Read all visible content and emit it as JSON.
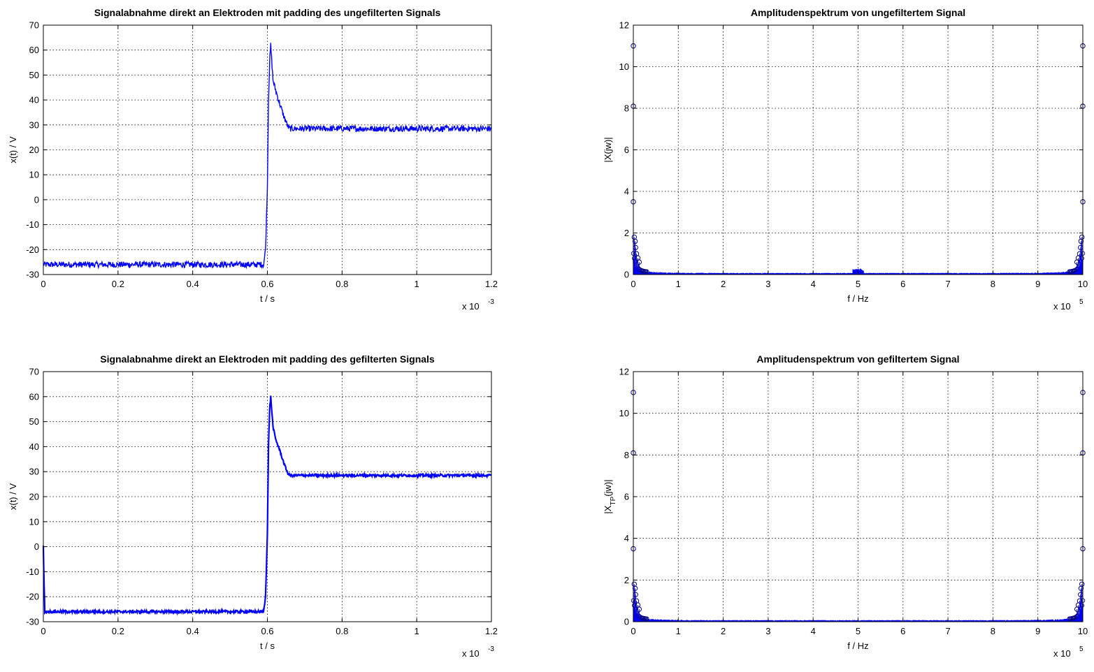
{
  "chart_data": [
    {
      "type": "line",
      "title": "Signalabnahme direkt an Elektroden mit padding des ungefilterten Signals",
      "xlabel": "t / s",
      "ylabel": "x(t) / V",
      "x_exponent": "x 10",
      "x_exponent_power": "-3",
      "xlim": [
        0,
        1.2
      ],
      "ylim": [
        -30,
        70
      ],
      "x_ticks": [
        0,
        0.2,
        0.4,
        0.6,
        0.8,
        1,
        1.2
      ],
      "x_tick_labels": [
        "0",
        "0.2",
        "0.4",
        "0.6",
        "0.8",
        "1",
        "1.2"
      ],
      "y_ticks": [
        -30,
        -20,
        -10,
        0,
        10,
        20,
        30,
        40,
        50,
        60,
        70
      ],
      "y_tick_labels": [
        "-30",
        "-20",
        "-10",
        "0",
        "10",
        "20",
        "30",
        "40",
        "50",
        "60",
        "70"
      ],
      "grid": true,
      "line_color": "#0000ff",
      "noise_amplitude": 1.2,
      "series": [
        {
          "x": [
            0,
            0.59,
            0.595,
            0.6,
            0.603,
            0.606,
            0.609,
            0.615,
            0.622,
            0.632,
            0.645,
            0.656,
            0.66,
            0.8,
            1.0,
            1.2
          ],
          "y": [
            -26,
            -26,
            -20,
            5,
            40,
            55,
            62,
            48,
            44,
            39,
            33,
            29,
            28.5,
            28.5,
            28.5,
            28.5
          ]
        }
      ]
    },
    {
      "type": "scatter",
      "title": "Amplitudenspektrum von ungefiltertem Signal",
      "xlabel": "f / Hz",
      "ylabel": "|X(jw)|",
      "x_exponent": "x 10",
      "x_exponent_power": "5",
      "xlim": [
        0,
        10
      ],
      "ylim": [
        0,
        12
      ],
      "x_ticks": [
        0,
        1,
        2,
        3,
        4,
        5,
        6,
        7,
        8,
        9,
        10
      ],
      "x_tick_labels": [
        "0",
        "1",
        "2",
        "3",
        "4",
        "5",
        "6",
        "7",
        "8",
        "9",
        "10"
      ],
      "y_ticks": [
        0,
        2,
        4,
        6,
        8,
        10,
        12
      ],
      "y_tick_labels": [
        "0",
        "2",
        "4",
        "6",
        "8",
        "10",
        "12"
      ],
      "grid": true,
      "line_color": "#0000ff",
      "marker": "o",
      "peak_points": [
        {
          "x": 0,
          "y": 11
        },
        {
          "x": 0,
          "y": 8.1
        },
        {
          "x": 0,
          "y": 3.5
        },
        {
          "x": 0.02,
          "y": 1.8
        },
        {
          "x": 0.04,
          "y": 1.6
        },
        {
          "x": 0.05,
          "y": 1.3
        },
        {
          "x": 0.07,
          "y": 1.0
        },
        {
          "x": 0.1,
          "y": 0.8
        },
        {
          "x": 0.13,
          "y": 0.6
        },
        {
          "x": 10,
          "y": 11
        },
        {
          "x": 10,
          "y": 8.1
        },
        {
          "x": 10,
          "y": 3.5
        },
        {
          "x": 9.98,
          "y": 1.8
        },
        {
          "x": 9.96,
          "y": 1.6
        },
        {
          "x": 9.95,
          "y": 1.3
        },
        {
          "x": 9.93,
          "y": 1.0
        },
        {
          "x": 9.9,
          "y": 0.8
        },
        {
          "x": 9.87,
          "y": 0.6
        }
      ],
      "mid_bump": {
        "x": 5,
        "y": 0.28
      }
    },
    {
      "type": "line",
      "title": "Signalabnahme direkt an Elektroden mit padding des gefilterten Signals",
      "xlabel": "t / s",
      "ylabel": "x(t) / V",
      "x_exponent": "x 10",
      "x_exponent_power": "-3",
      "xlim": [
        0,
        1.2
      ],
      "ylim": [
        -30,
        70
      ],
      "x_ticks": [
        0,
        0.2,
        0.4,
        0.6,
        0.8,
        1,
        1.2
      ],
      "x_tick_labels": [
        "0",
        "0.2",
        "0.4",
        "0.6",
        "0.8",
        "1",
        "1.2"
      ],
      "y_ticks": [
        -30,
        -20,
        -10,
        0,
        10,
        20,
        30,
        40,
        50,
        60,
        70
      ],
      "y_tick_labels": [
        "-30",
        "-20",
        "-10",
        "0",
        "10",
        "20",
        "30",
        "40",
        "50",
        "60",
        "70"
      ],
      "grid": true,
      "line_color": "#0000ff",
      "noise_amplitude": 0.5,
      "series": [
        {
          "x": [
            0,
            0.002,
            0.004,
            0.01,
            0.59,
            0.595,
            0.6,
            0.603,
            0.606,
            0.609,
            0.615,
            0.622,
            0.632,
            0.645,
            0.656,
            0.66,
            0.8,
            1.0,
            1.2
          ],
          "y": [
            0,
            -15,
            -26,
            -26,
            -26,
            -20,
            5,
            40,
            55,
            60,
            48,
            43,
            39,
            33,
            29,
            28.5,
            28.5,
            28.5,
            28.5
          ]
        }
      ]
    },
    {
      "type": "scatter",
      "title": "Amplitudenspektrum von gefiltertem Signal",
      "xlabel": "f / Hz",
      "ylabel": "|X",
      "ylabel_sub": "TP",
      "ylabel_rest": "(jw)|",
      "x_exponent": "x 10",
      "x_exponent_power": "5",
      "xlim": [
        0,
        10
      ],
      "ylim": [
        0,
        12
      ],
      "x_ticks": [
        0,
        1,
        2,
        3,
        4,
        5,
        6,
        7,
        8,
        9,
        10
      ],
      "x_tick_labels": [
        "0",
        "1",
        "2",
        "3",
        "4",
        "5",
        "6",
        "7",
        "8",
        "9",
        "10"
      ],
      "y_ticks": [
        0,
        2,
        4,
        6,
        8,
        10,
        12
      ],
      "y_tick_labels": [
        "0",
        "2",
        "4",
        "6",
        "8",
        "10",
        "12"
      ],
      "grid": true,
      "line_color": "#0000ff",
      "marker": "o",
      "peak_points": [
        {
          "x": 0,
          "y": 11
        },
        {
          "x": 0,
          "y": 8.1
        },
        {
          "x": 0,
          "y": 3.5
        },
        {
          "x": 0.02,
          "y": 1.8
        },
        {
          "x": 0.04,
          "y": 1.6
        },
        {
          "x": 0.05,
          "y": 1.3
        },
        {
          "x": 0.07,
          "y": 1.0
        },
        {
          "x": 0.1,
          "y": 0.8
        },
        {
          "x": 0.13,
          "y": 0.6
        },
        {
          "x": 10,
          "y": 11
        },
        {
          "x": 10,
          "y": 8.1
        },
        {
          "x": 10,
          "y": 3.5
        },
        {
          "x": 9.98,
          "y": 1.8
        },
        {
          "x": 9.96,
          "y": 1.6
        },
        {
          "x": 9.95,
          "y": 1.3
        },
        {
          "x": 9.93,
          "y": 1.0
        },
        {
          "x": 9.9,
          "y": 0.8
        },
        {
          "x": 9.87,
          "y": 0.6
        }
      ],
      "mid_bump": {
        "x": 5,
        "y": 0.05
      }
    }
  ]
}
